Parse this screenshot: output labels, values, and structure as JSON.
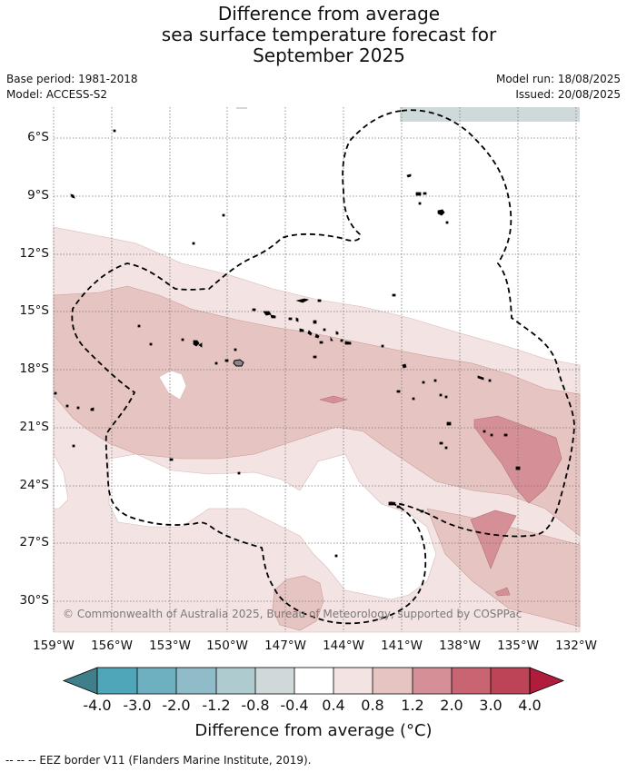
{
  "title": {
    "line1": "Difference from average",
    "line2": "sea surface temperature forecast for",
    "line3": "September 2025"
  },
  "meta": {
    "base_period": "Base period: 1981-2018",
    "model": "Model: ACCESS-S2",
    "model_run": "Model run: 18/08/2025",
    "issued": "Issued: 20/08/2025"
  },
  "map": {
    "lat_ticks": [
      "6°S",
      "9°S",
      "12°S",
      "15°S",
      "18°S",
      "21°S",
      "24°S",
      "27°S",
      "30°S"
    ],
    "lon_ticks": [
      "159°W",
      "156°W",
      "153°W",
      "150°W",
      "147°W",
      "144°W",
      "141°W",
      "138°W",
      "135°W",
      "132°W"
    ],
    "copyright": "© Commonwealth of Australia 2025, Bureau of Meteorology, supported by COSPPac"
  },
  "colorbar": {
    "labels": [
      "-4.0",
      "-3.0",
      "-2.0",
      "-1.2",
      "-0.8",
      "-0.4",
      "0.4",
      "0.8",
      "1.2",
      "2.0",
      "3.0",
      "4.0"
    ],
    "colors": {
      "under": "#3f7f8c",
      "bin1": "#4ea6b8",
      "bin2": "#6fb0c0",
      "bin3": "#8fbcc8",
      "bin4": "#aecbd0",
      "bin5": "#cfd9da",
      "bin6": "#ffffff",
      "bin7": "#f3e4e3",
      "bin8": "#e6c4c1",
      "bin9": "#d58f96",
      "bin10": "#c96472",
      "bin11": "#bd4456",
      "over": "#b01c3c"
    },
    "title": "Difference from average (°C)"
  },
  "footer": "-- -- -- EEZ border V11 (Flanders Marine Institute, 2019)."
}
